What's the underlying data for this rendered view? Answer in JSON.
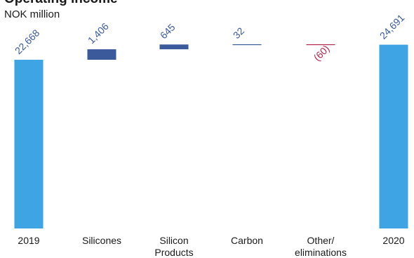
{
  "chart_data": {
    "type": "bar",
    "subtype": "waterfall",
    "title": "Operating income",
    "unit_label": "NOK million",
    "categories": [
      "2019",
      "Silicones",
      "Silicon Products",
      "Carbon",
      "Other/ eliminations",
      "2020"
    ],
    "category_label_lines": [
      [
        "2019"
      ],
      [
        "Silicones"
      ],
      [
        "Silicon",
        "Products"
      ],
      [
        "Carbon"
      ],
      [
        "Other/",
        "eliminations"
      ],
      [
        "2020"
      ]
    ],
    "bar_kinds": [
      "total",
      "delta",
      "delta",
      "delta",
      "delta",
      "total"
    ],
    "values": [
      22668,
      1406,
      645,
      32,
      -60,
      24691
    ],
    "value_labels": [
      "22,668",
      "1,406",
      "645",
      "32",
      "(60)",
      "24,691"
    ],
    "colors": {
      "total": "#3ea4e4",
      "increase": "#3a5a9b",
      "decrease": "#b0274b",
      "label_positive": "#3a5a9b",
      "label_negative": "#b0274b"
    },
    "grid": false,
    "legend": false
  }
}
